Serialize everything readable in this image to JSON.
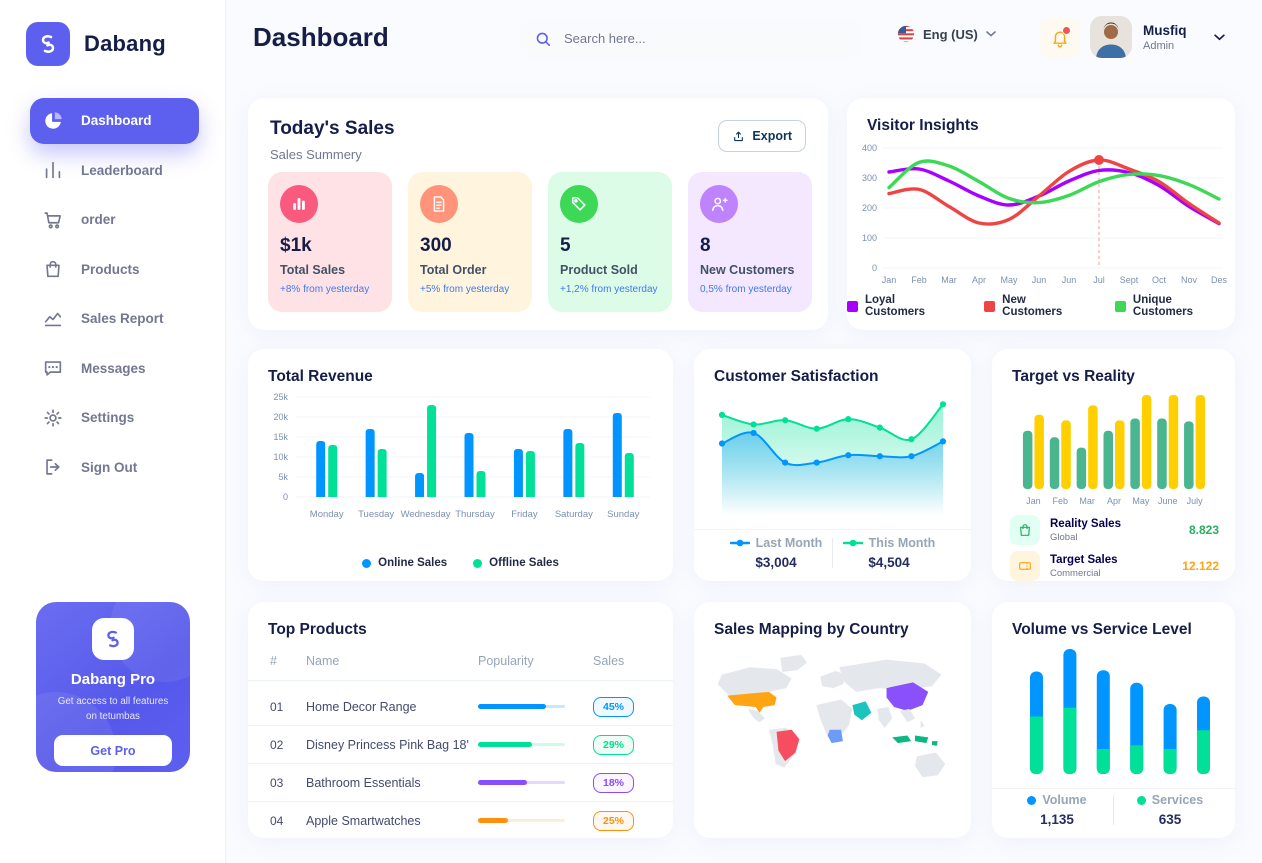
{
  "brand": {
    "name": "Dabang"
  },
  "sidebar": {
    "items": [
      {
        "label": "Dashboard",
        "icon": "pie-chart-icon",
        "active": true
      },
      {
        "label": "Leaderboard",
        "icon": "bar-chart-icon",
        "active": false
      },
      {
        "label": "order",
        "icon": "cart-icon",
        "active": false
      },
      {
        "label": "Products",
        "icon": "bag-icon",
        "active": false
      },
      {
        "label": "Sales Report",
        "icon": "line-chart-icon",
        "active": false
      },
      {
        "label": "Messages",
        "icon": "message-icon",
        "active": false
      },
      {
        "label": "Settings",
        "icon": "gear-icon",
        "active": false
      },
      {
        "label": "Sign Out",
        "icon": "sign-out-icon",
        "active": false
      }
    ],
    "pro_card": {
      "title": "Dabang Pro",
      "description": "Get access to all features on tetumbas",
      "button_label": "Get Pro"
    }
  },
  "header": {
    "title": "Dashboard",
    "search_placeholder": "Search here...",
    "language": "Eng (US)",
    "user": {
      "name": "Musfiq",
      "role": "Admin"
    }
  },
  "today_sales": {
    "title": "Today's Sales",
    "subtitle": "Sales Summery",
    "export_label": "Export",
    "stats": [
      {
        "value": "$1k",
        "label": "Total Sales",
        "delta": "+8% from yesterday",
        "bg": "#FFE2E5",
        "icon_bg": "#FA5A7D",
        "icon": "chart-icon"
      },
      {
        "value": "300",
        "label": "Total Order",
        "delta": "+5% from yesterday",
        "bg": "#FFF4DE",
        "icon_bg": "#FF947A",
        "icon": "order-icon"
      },
      {
        "value": "5",
        "label": "Product Sold",
        "delta": "+1,2% from yesterday",
        "bg": "#DCFCE7",
        "icon_bg": "#3CD856",
        "icon": "tag-icon"
      },
      {
        "value": "8",
        "label": "New Customers",
        "delta": "0,5% from yesterday",
        "bg": "#F3E8FF",
        "icon_bg": "#BF83FF",
        "icon": "new-user-icon"
      }
    ]
  },
  "top_products": {
    "title": "Top Products",
    "columns": [
      "#",
      "Name",
      "Popularity",
      "Sales"
    ],
    "rows": [
      {
        "num": "01",
        "name": "Home Decor Range",
        "popularity": 0.78,
        "sales": "45%",
        "color": "#0095FF",
        "track": "#8AC8FF",
        "badge_bg": "#F0F9FF"
      },
      {
        "num": "02",
        "name": "Disney Princess Pink Bag 18'",
        "popularity": 0.62,
        "sales": "29%",
        "color": "#00E096",
        "track": "#8CFAC7",
        "badge_bg": "#F0FDF4"
      },
      {
        "num": "03",
        "name": "Bathroom Essentials",
        "popularity": 0.56,
        "sales": "18%",
        "color": "#884DFF",
        "track": "#C5A8FF",
        "badge_bg": "#FBF5FF"
      },
      {
        "num": "04",
        "name": "Apple Smartwatches",
        "popularity": 0.34,
        "sales": "25%",
        "color": "#FF8F0D",
        "track": "#FFD5A4",
        "badge_bg": "#FFF8F0"
      }
    ]
  },
  "sales_map": {
    "title": "Sales Mapping by Country",
    "countries": [
      {
        "name": "United States",
        "color": "#FFA412"
      },
      {
        "name": "Brazil",
        "color": "#F64E60"
      },
      {
        "name": "DR Congo",
        "color": "#6D9CF8"
      },
      {
        "name": "Saudi Arabia",
        "color": "#1BC5BD"
      },
      {
        "name": "China",
        "color": "#8950FC"
      },
      {
        "name": "Indonesia",
        "color": "#0BB783"
      }
    ]
  },
  "chart_data": [
    {
      "id": "visitor-insights",
      "type": "line",
      "title": "Visitor Insights",
      "x": [
        "Jan",
        "Feb",
        "Mar",
        "Apr",
        "May",
        "Jun",
        "Jun",
        "Jul",
        "Sept",
        "Oct",
        "Nov",
        "Des"
      ],
      "ylim": [
        0,
        400
      ],
      "yticks": [
        0,
        100,
        200,
        300,
        400
      ],
      "grid": true,
      "legend_position": "bottom",
      "series": [
        {
          "name": "Loyal Customers",
          "color": "#A700FF",
          "values": [
            320,
            330,
            290,
            240,
            210,
            240,
            290,
            325,
            318,
            275,
            205,
            148
          ]
        },
        {
          "name": "New Customers",
          "color": "#EF4444",
          "values": [
            248,
            262,
            205,
            150,
            162,
            240,
            322,
            360,
            330,
            288,
            215,
            150
          ]
        },
        {
          "name": "Unique Customers",
          "color": "#3CD856",
          "values": [
            268,
            352,
            340,
            288,
            232,
            218,
            242,
            288,
            312,
            308,
            278,
            230
          ]
        }
      ],
      "marker": {
        "x_index": 7,
        "value": 360,
        "color": "#EF4444"
      }
    },
    {
      "id": "total-revenue",
      "type": "bar",
      "title": "Total Revenue",
      "categories": [
        "Monday",
        "Tuesday",
        "Wednesday",
        "Thursday",
        "Friday",
        "Saturday",
        "Sunday"
      ],
      "ylim": [
        0,
        25000
      ],
      "yticks_labels": [
        "0",
        "5k",
        "10k",
        "15k",
        "20k",
        "25k"
      ],
      "grid": true,
      "legend_position": "bottom",
      "series": [
        {
          "name": "Online Sales",
          "color": "#0095FF",
          "values": [
            14000,
            17000,
            6000,
            16000,
            12000,
            17000,
            21000
          ]
        },
        {
          "name": "Offline Sales",
          "color": "#00E096",
          "values": [
            13000,
            12000,
            23000,
            6500,
            11500,
            13500,
            11000
          ]
        }
      ]
    },
    {
      "id": "customer-satisfaction",
      "type": "area",
      "title": "Customer Satisfaction",
      "ylim": [
        0,
        100
      ],
      "grid": false,
      "legend_position": "bottom",
      "series": [
        {
          "name": "Last Month",
          "color": "#0095FF",
          "total": "$3,004",
          "values": [
            58,
            68,
            40,
            40,
            47,
            46,
            46,
            60
          ]
        },
        {
          "name": "This Month",
          "color": "#00E096",
          "total": "$4,504",
          "values": [
            85,
            76,
            80,
            72,
            81,
            73,
            62,
            95
          ]
        }
      ]
    },
    {
      "id": "target-vs-reality",
      "type": "bar",
      "title": "Target vs Reality",
      "categories": [
        "Jan",
        "Feb",
        "Mar",
        "Apr",
        "May",
        "June",
        "July"
      ],
      "ylim": [
        0,
        10
      ],
      "grid": false,
      "series": [
        {
          "name": "Reality Sales",
          "color": "#4AB58E",
          "values": [
            6.2,
            5.5,
            4.4,
            6.2,
            7.5,
            7.5,
            7.2
          ]
        },
        {
          "name": "Target Sales",
          "color": "#FFCF00",
          "values": [
            7.9,
            7.3,
            8.9,
            7.3,
            10,
            10,
            10
          ]
        }
      ],
      "legend": [
        {
          "name": "Reality Sales",
          "sub": "Global",
          "value": "8.823",
          "value_color": "#27AE60",
          "icon_bg": "#E2FFF3",
          "icon": "bag-icon"
        },
        {
          "name": "Target Sales",
          "sub": "Commercial",
          "value": "12.122",
          "value_color": "#FFA412",
          "icon_bg": "#FFF4DE",
          "icon": "ticket-icon"
        }
      ]
    },
    {
      "id": "volume-vs-service",
      "type": "stacked-bar",
      "title": "Volume vs Service Level",
      "ylim": [
        0,
        100
      ],
      "grid": false,
      "legend_position": "bottom",
      "series": [
        {
          "name": "Volume",
          "color": "#0095FF",
          "total": "1,135",
          "values": [
            36,
            47,
            63,
            50,
            36,
            27
          ]
        },
        {
          "name": "Services",
          "color": "#00E096",
          "total": "635",
          "values": [
            46,
            53,
            20,
            23,
            20,
            35
          ]
        }
      ]
    }
  ]
}
